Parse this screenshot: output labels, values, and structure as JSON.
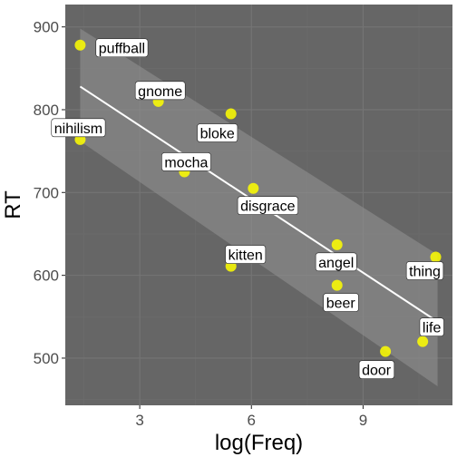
{
  "colors": {
    "panel": "#666666",
    "grid_major": "#757575",
    "grid_minor": "#6d6d6d",
    "point": "#ffff00",
    "fit_line": "#ffffff",
    "ribbon": "#8f8f8f",
    "label_bg": "#ffffff"
  },
  "chart_data": {
    "type": "scatter",
    "xlabel": "log(Freq)",
    "ylabel": "RT",
    "xlim": [
      1.0,
      11.4
    ],
    "ylim": [
      443,
      927
    ],
    "x_ticks": [
      3,
      6,
      9
    ],
    "y_ticks": [
      500,
      600,
      700,
      800,
      900
    ],
    "x_tick_labels": [
      "3",
      "6",
      "9"
    ],
    "y_tick_labels": [
      "500",
      "600",
      "700",
      "800",
      "900"
    ],
    "grid": true,
    "points": [
      {
        "word": "puffball",
        "x": 1.4,
        "y": 878
      },
      {
        "word": "nihilism",
        "x": 1.4,
        "y": 764
      },
      {
        "word": "gnome",
        "x": 3.5,
        "y": 810
      },
      {
        "word": "mocha",
        "x": 4.2,
        "y": 725
      },
      {
        "word": "bloke",
        "x": 5.45,
        "y": 795
      },
      {
        "word": "kitten",
        "x": 5.45,
        "y": 611
      },
      {
        "word": "disgrace",
        "x": 6.05,
        "y": 705
      },
      {
        "word": "angel",
        "x": 8.3,
        "y": 637
      },
      {
        "word": "beer",
        "x": 8.3,
        "y": 588
      },
      {
        "word": "door",
        "x": 9.6,
        "y": 508
      },
      {
        "word": "life",
        "x": 10.6,
        "y": 520
      },
      {
        "word": "thing",
        "x": 10.95,
        "y": 622
      }
    ],
    "fit": {
      "x": [
        1.4,
        11.0
      ],
      "y": [
        828,
        544
      ],
      "ci_lower": [
        762,
        466
      ],
      "ci_upper": [
        898,
        625
      ]
    }
  }
}
